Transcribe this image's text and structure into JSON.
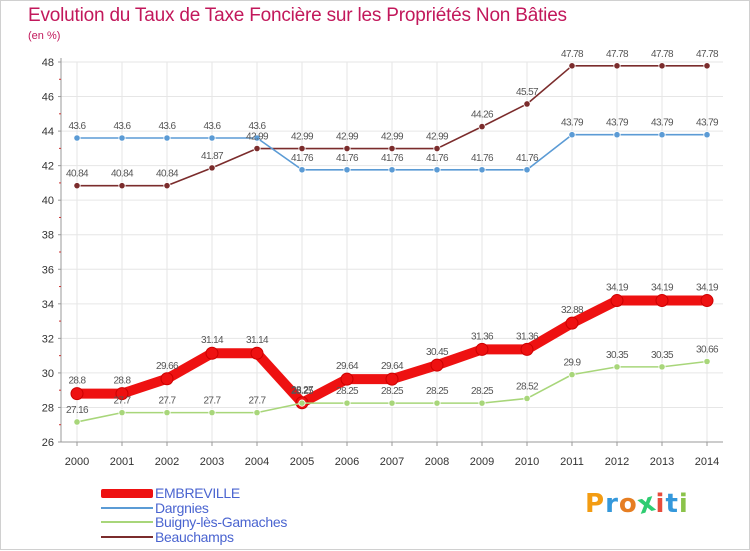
{
  "title": "Evolution du Taux de Taxe Foncière sur les Propriétés Non Bâties",
  "unit": "(en %)",
  "logo": {
    "text": "Proxiti",
    "letters": [
      "P",
      "r",
      "o",
      "x",
      "i",
      "t",
      "i"
    ],
    "colors": [
      "#f39c12",
      "#3498db",
      "#e67e22",
      "#2ecc71",
      "#e74c3c",
      "#3498db",
      "#8bc34a"
    ]
  },
  "chart_data": {
    "type": "line",
    "title": "Evolution du Taux de Taxe Foncière sur les Propriétés Non Bâties",
    "ylabel": "(en %)",
    "xlabel": "",
    "ylim": [
      26,
      48
    ],
    "yticks": [
      26,
      28,
      30,
      32,
      34,
      36,
      38,
      40,
      42,
      44,
      46,
      48
    ],
    "grid": true,
    "legend_position": "bottom-left",
    "x": [
      "2000",
      "2001",
      "2002",
      "2003",
      "2004",
      "2005",
      "2006",
      "2007",
      "2008",
      "2009",
      "2010",
      "2011",
      "2012",
      "2013",
      "2014"
    ],
    "series": [
      {
        "name": "EMBREVILLE",
        "color": "#ee1111",
        "thick": true,
        "values": [
          28.8,
          28.8,
          29.66,
          31.14,
          31.14,
          28.27,
          29.64,
          29.64,
          30.45,
          31.36,
          31.36,
          32.88,
          34.19,
          34.19,
          34.19
        ],
        "labels": [
          "28.8",
          "28.8",
          "29.66",
          "31.14",
          "31.14",
          "28.27",
          "29.64",
          "29.64",
          "30.45",
          "31.36",
          "31.36",
          "32.88",
          "34.19",
          "34.19",
          "34.19"
        ]
      },
      {
        "name": "Dargnies",
        "color": "#5b9bd5",
        "thick": false,
        "values": [
          43.6,
          43.6,
          43.6,
          43.6,
          43.6,
          41.76,
          41.76,
          41.76,
          41.76,
          41.76,
          41.76,
          43.79,
          43.79,
          43.79,
          43.79
        ],
        "labels": [
          "43.6",
          "43.6",
          "43.6",
          "43.6",
          "43.6",
          "41.76",
          "41.76",
          "41.76",
          "41.76",
          "41.76",
          "41.76",
          "43.79",
          "43.79",
          "43.79",
          "43.79"
        ]
      },
      {
        "name": "Buigny-lès-Gamaches",
        "color": "#a8d67a",
        "thick": false,
        "values": [
          27.16,
          27.7,
          27.7,
          27.7,
          27.7,
          28.25,
          28.25,
          28.25,
          28.25,
          28.25,
          28.52,
          29.9,
          30.35,
          30.35,
          30.66
        ],
        "labels": [
          "27.16",
          "27.7",
          "27.7",
          "27.7",
          "27.7",
          "28.25",
          "28.25",
          "28.25",
          "28.25",
          "28.25",
          "28.52",
          "29.9",
          "30.35",
          "30.35",
          "30.66"
        ]
      },
      {
        "name": "Beauchamps",
        "color": "#7b2c2c",
        "thick": false,
        "values": [
          40.84,
          40.84,
          40.84,
          41.87,
          42.99,
          42.99,
          42.99,
          42.99,
          42.99,
          44.26,
          45.57,
          47.78,
          47.78,
          47.78,
          47.78
        ],
        "labels": [
          "40.84",
          "40.84",
          "40.84",
          "41.87",
          "42.99",
          "42.99",
          "42.99",
          "42.99",
          "42.99",
          "44.26",
          "45.57",
          "47.78",
          "47.78",
          "47.78",
          "47.78"
        ]
      }
    ]
  }
}
